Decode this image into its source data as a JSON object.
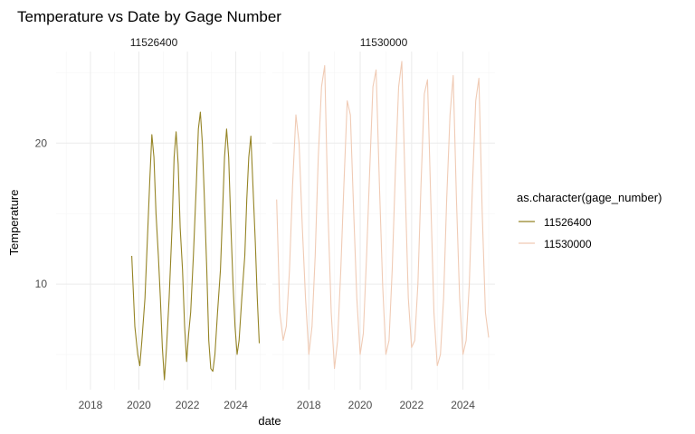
{
  "chart_data": {
    "type": "line",
    "title": "Temperature vs Date by Gage Number",
    "xlabel": "date",
    "ylabel": "Temperature",
    "x_ticks": [
      "2018",
      "2020",
      "2022",
      "2024"
    ],
    "y_ticks": [
      10,
      20
    ],
    "xlim": [
      "2016-08-01",
      "2025-04-01"
    ],
    "ylim": [
      2.5,
      26.5
    ],
    "grid": true,
    "legend": {
      "title": "as.character(gage_number)",
      "placement": "right"
    },
    "panels": [
      "11526400",
      "11530000"
    ],
    "series": [
      {
        "name": "11526400",
        "color": "#958425",
        "x": [
          "2019-09-15",
          "2019-11-01",
          "2019-12-15",
          "2020-01-15",
          "2020-02-15",
          "2020-04-01",
          "2020-05-15",
          "2020-06-15",
          "2020-07-15",
          "2020-08-15",
          "2020-09-15",
          "2020-10-20",
          "2020-11-20",
          "2020-12-20",
          "2021-01-20",
          "2021-02-20",
          "2021-04-01",
          "2021-05-15",
          "2021-06-15",
          "2021-07-15",
          "2021-08-15",
          "2021-09-15",
          "2021-10-20",
          "2021-11-20",
          "2021-12-20",
          "2022-01-20",
          "2022-02-20",
          "2022-04-01",
          "2022-05-15",
          "2022-06-15",
          "2022-07-15",
          "2022-08-15",
          "2022-09-15",
          "2022-10-20",
          "2022-11-20",
          "2022-12-20",
          "2023-01-20",
          "2023-02-20",
          "2023-04-01",
          "2023-05-15",
          "2023-06-15",
          "2023-07-15",
          "2023-08-15",
          "2023-09-15",
          "2023-10-20",
          "2023-11-20",
          "2023-12-20",
          "2024-01-20",
          "2024-02-20",
          "2024-04-01",
          "2024-05-15",
          "2024-06-15",
          "2024-07-15",
          "2024-08-15",
          "2024-09-15",
          "2024-10-20",
          "2024-11-20",
          "2024-12-20"
        ],
        "y": [
          12,
          7,
          5,
          4.2,
          6,
          9,
          14,
          17.5,
          20.6,
          19,
          15,
          12,
          9,
          5.5,
          3.2,
          5.5,
          9,
          14,
          19,
          20.8,
          18.5,
          14,
          11,
          7,
          4.5,
          6.5,
          8,
          12,
          17,
          21,
          22.2,
          20,
          16,
          11,
          6,
          4,
          3.8,
          5,
          8,
          11,
          15,
          19,
          21,
          19,
          14,
          10,
          7,
          5,
          6,
          9,
          12,
          16,
          19,
          20.5,
          17,
          13,
          9,
          5.8
        ]
      },
      {
        "name": "11530000",
        "color": "#f0cbb5",
        "x": [
          "2016-10-01",
          "2016-11-15",
          "2017-01-01",
          "2017-02-15",
          "2017-04-01",
          "2017-05-15",
          "2017-07-01",
          "2017-08-15",
          "2017-10-01",
          "2017-11-15",
          "2018-01-01",
          "2018-02-15",
          "2018-04-01",
          "2018-05-15",
          "2018-07-01",
          "2018-08-15",
          "2018-10-01",
          "2018-11-15",
          "2019-01-01",
          "2019-02-15",
          "2019-04-01",
          "2019-05-15",
          "2019-07-01",
          "2019-08-15",
          "2019-10-01",
          "2019-11-15",
          "2020-01-01",
          "2020-02-15",
          "2020-04-01",
          "2020-05-15",
          "2020-07-01",
          "2020-08-15",
          "2020-10-01",
          "2020-11-15",
          "2021-01-01",
          "2021-02-15",
          "2021-04-01",
          "2021-05-15",
          "2021-07-01",
          "2021-08-15",
          "2021-10-01",
          "2021-11-15",
          "2022-01-01",
          "2022-02-15",
          "2022-04-01",
          "2022-05-15",
          "2022-07-01",
          "2022-08-15",
          "2022-10-01",
          "2022-11-15",
          "2023-01-01",
          "2023-02-15",
          "2023-04-01",
          "2023-05-15",
          "2023-07-01",
          "2023-08-15",
          "2023-10-01",
          "2023-11-15",
          "2024-01-01",
          "2024-02-15",
          "2024-04-01",
          "2024-05-15",
          "2024-07-01",
          "2024-08-15",
          "2024-10-01",
          "2024-11-15",
          "2025-01-01"
        ],
        "y": [
          16,
          8,
          6,
          7,
          11,
          17,
          22,
          20,
          14,
          9,
          5,
          7,
          12,
          19,
          24,
          25.5,
          15,
          8,
          4,
          6,
          11,
          17,
          23,
          22,
          15,
          9,
          5,
          6.5,
          12,
          18,
          24,
          25.2,
          17,
          10,
          5,
          6,
          11,
          18,
          24,
          25.8,
          17,
          9,
          5.5,
          6,
          10,
          17,
          23.5,
          24.5,
          16,
          8,
          4.2,
          5,
          9,
          16,
          22,
          24.8,
          16,
          9,
          5,
          6,
          10,
          17,
          23,
          24.6,
          15,
          8,
          6.2
        ]
      }
    ]
  }
}
